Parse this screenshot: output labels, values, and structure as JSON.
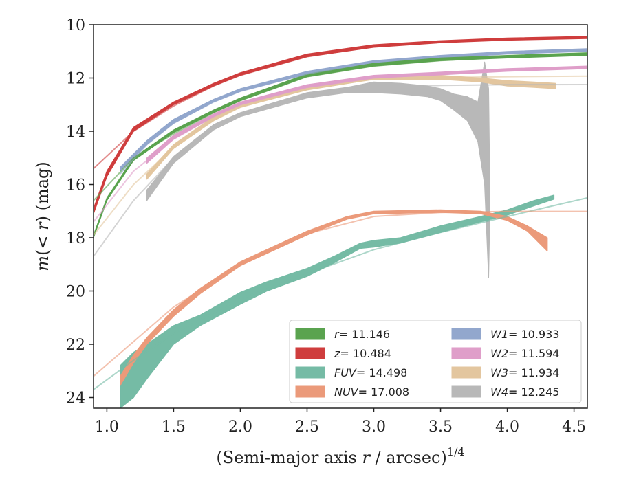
{
  "chart_data": {
    "type": "line",
    "xlabel": "(Semi-major axis r / arcsec)",
    "xlabel_parts": {
      "prefix": "(Semi-major axis ",
      "var": "r",
      "suffix": " / arcsec)",
      "exponent": "1/4"
    },
    "ylabel_parts": {
      "m": "m",
      "open": "(",
      "lt": "< ",
      "r": "r",
      "close": ")",
      "unit": " (mag)"
    },
    "xlim": [
      0.9,
      4.6
    ],
    "ylim": [
      24.4,
      10.0
    ],
    "y_inverted": true,
    "xticks": [
      "1.0",
      "1.5",
      "2.0",
      "2.5",
      "3.0",
      "3.5",
      "4.0",
      "4.5"
    ],
    "yticks": [
      "10",
      "12",
      "14",
      "16",
      "18",
      "20",
      "22",
      "24"
    ],
    "grid": false,
    "legend_placement": "lower-right",
    "series": [
      {
        "key": "r",
        "label_var": "r",
        "label_val": "= 11.146",
        "color": "#5aa34f",
        "fit": [
          [
            0.9,
            16.6
          ],
          [
            1.2,
            15.0
          ],
          [
            1.5,
            14.1
          ],
          [
            1.8,
            13.3
          ],
          [
            2.0,
            12.85
          ],
          [
            2.5,
            11.95
          ],
          [
            3.0,
            11.55
          ],
          [
            3.5,
            11.35
          ],
          [
            4.0,
            11.22
          ],
          [
            4.6,
            11.12
          ]
        ],
        "band": [
          [
            0.9,
            18.0,
            17.9
          ],
          [
            1.0,
            16.6,
            16.5
          ],
          [
            1.2,
            15.1,
            15.0
          ],
          [
            1.5,
            14.05,
            13.95
          ],
          [
            1.8,
            13.3,
            13.2
          ],
          [
            2.0,
            12.85,
            12.75
          ],
          [
            2.5,
            11.95,
            11.85
          ],
          [
            3.0,
            11.55,
            11.45
          ],
          [
            3.5,
            11.35,
            11.25
          ],
          [
            4.0,
            11.25,
            11.15
          ],
          [
            4.6,
            11.15,
            11.05
          ]
        ]
      },
      {
        "key": "z",
        "label_var": "z",
        "label_val": "= 10.484",
        "color": "#cf3d3d",
        "fit": [
          [
            0.9,
            15.4
          ],
          [
            1.2,
            14.0
          ],
          [
            1.5,
            13.05
          ],
          [
            1.8,
            12.3
          ],
          [
            2.0,
            11.9
          ],
          [
            2.5,
            11.2
          ],
          [
            3.0,
            10.82
          ],
          [
            3.5,
            10.65
          ],
          [
            4.0,
            10.55
          ],
          [
            4.6,
            10.48
          ]
        ],
        "band": [
          [
            0.9,
            17.1,
            16.9
          ],
          [
            1.0,
            15.7,
            15.5
          ],
          [
            1.2,
            14.0,
            13.85
          ],
          [
            1.5,
            13.0,
            12.9
          ],
          [
            1.8,
            12.3,
            12.2
          ],
          [
            2.0,
            11.9,
            11.8
          ],
          [
            2.5,
            11.2,
            11.1
          ],
          [
            3.0,
            10.85,
            10.75
          ],
          [
            3.5,
            10.68,
            10.6
          ],
          [
            4.0,
            10.58,
            10.5
          ],
          [
            4.6,
            10.52,
            10.44
          ]
        ]
      },
      {
        "key": "W1",
        "label_var": "W1",
        "label_val": "= 10.933",
        "color": "#92a7cd",
        "fit": [
          [
            1.1,
            15.6
          ],
          [
            1.3,
            14.5
          ],
          [
            1.5,
            13.7
          ],
          [
            1.8,
            12.9
          ],
          [
            2.0,
            12.5
          ],
          [
            2.5,
            11.85
          ],
          [
            3.0,
            11.4
          ],
          [
            3.5,
            11.2
          ],
          [
            4.0,
            11.05
          ],
          [
            4.6,
            10.95
          ]
        ],
        "band": [
          [
            1.1,
            15.5,
            15.35
          ],
          [
            1.3,
            14.5,
            14.35
          ],
          [
            1.5,
            13.7,
            13.55
          ],
          [
            1.8,
            12.9,
            12.8
          ],
          [
            2.0,
            12.5,
            12.4
          ],
          [
            2.5,
            11.85,
            11.75
          ],
          [
            3.0,
            11.45,
            11.35
          ],
          [
            3.5,
            11.25,
            11.15
          ],
          [
            4.0,
            11.1,
            11.0
          ],
          [
            4.6,
            11.0,
            10.9
          ]
        ]
      },
      {
        "key": "W2",
        "label_var": "W2",
        "label_val": "= 11.594",
        "color": "#df9ec9",
        "fit": [
          [
            0.9,
            17.4
          ],
          [
            1.2,
            15.5
          ],
          [
            1.5,
            14.3
          ],
          [
            1.8,
            13.45
          ],
          [
            2.0,
            13.0
          ],
          [
            2.5,
            12.35
          ],
          [
            3.0,
            12.0
          ],
          [
            3.5,
            11.85
          ],
          [
            4.0,
            11.72
          ],
          [
            4.6,
            11.6
          ]
        ],
        "band": [
          [
            1.3,
            15.2,
            15.0
          ],
          [
            1.5,
            14.3,
            14.15
          ],
          [
            1.8,
            13.45,
            13.35
          ],
          [
            2.0,
            13.0,
            12.9
          ],
          [
            2.5,
            12.35,
            12.25
          ],
          [
            3.0,
            12.0,
            11.9
          ],
          [
            3.5,
            11.88,
            11.78
          ],
          [
            4.0,
            11.75,
            11.65
          ],
          [
            4.6,
            11.65,
            11.55
          ]
        ]
      },
      {
        "key": "W3",
        "label_var": "W3",
        "label_val": "= 11.934",
        "color": "#e3c69f",
        "fit": [
          [
            0.9,
            17.9
          ],
          [
            1.2,
            16.0
          ],
          [
            1.5,
            14.6
          ],
          [
            1.8,
            13.6
          ],
          [
            2.0,
            13.1
          ],
          [
            2.5,
            12.4
          ],
          [
            3.0,
            12.05
          ],
          [
            3.5,
            11.98
          ],
          [
            4.0,
            11.95
          ],
          [
            4.6,
            11.93
          ]
        ],
        "band": [
          [
            1.3,
            15.8,
            15.6
          ],
          [
            1.5,
            14.65,
            14.5
          ],
          [
            1.8,
            13.6,
            13.45
          ],
          [
            2.0,
            13.1,
            13.0
          ],
          [
            2.5,
            12.45,
            12.3
          ],
          [
            3.0,
            12.05,
            11.95
          ],
          [
            3.5,
            12.05,
            11.9
          ],
          [
            3.8,
            12.15,
            12.0
          ],
          [
            4.0,
            12.3,
            12.1
          ],
          [
            4.2,
            12.35,
            12.15
          ],
          [
            4.36,
            12.4,
            12.2
          ]
        ]
      },
      {
        "key": "W4",
        "label_var": "W4",
        "label_val": "= 12.245",
        "color": "#b8b8b8",
        "fit": [
          [
            0.9,
            18.7
          ],
          [
            1.2,
            16.6
          ],
          [
            1.5,
            15.0
          ],
          [
            1.8,
            13.9
          ],
          [
            2.0,
            13.4
          ],
          [
            2.5,
            12.7
          ],
          [
            3.0,
            12.35
          ],
          [
            3.5,
            12.28
          ],
          [
            4.0,
            12.25
          ],
          [
            4.6,
            12.245
          ]
        ],
        "band": [
          [
            1.3,
            16.6,
            16.2
          ],
          [
            1.5,
            15.2,
            14.95
          ],
          [
            1.8,
            13.95,
            13.75
          ],
          [
            2.0,
            13.45,
            13.3
          ],
          [
            2.5,
            12.75,
            12.55
          ],
          [
            2.8,
            12.55,
            12.35
          ],
          [
            3.0,
            12.55,
            12.15
          ],
          [
            3.2,
            12.6,
            12.2
          ],
          [
            3.4,
            12.7,
            12.3
          ],
          [
            3.5,
            12.85,
            12.4
          ],
          [
            3.6,
            13.2,
            12.6
          ],
          [
            3.7,
            13.6,
            12.7
          ],
          [
            3.78,
            14.4,
            12.9
          ],
          [
            3.83,
            16.0,
            11.4
          ],
          [
            3.86,
            19.5,
            12.4
          ],
          [
            3.87,
            17.0,
            16.4
          ]
        ]
      },
      {
        "key": "FUV",
        "label_var": "FUV",
        "label_val": "= 14.498",
        "color": "#75bba5",
        "fit": [
          [
            0.9,
            23.7
          ],
          [
            1.2,
            22.6
          ],
          [
            1.5,
            21.6
          ],
          [
            2.0,
            20.3
          ],
          [
            2.5,
            19.35
          ],
          [
            3.0,
            18.45
          ],
          [
            3.5,
            17.8
          ],
          [
            4.0,
            17.2
          ],
          [
            4.6,
            16.5
          ]
        ],
        "band": [
          [
            1.1,
            24.4,
            22.8
          ],
          [
            1.2,
            24.0,
            22.3
          ],
          [
            1.3,
            23.3,
            22.0
          ],
          [
            1.5,
            22.0,
            21.3
          ],
          [
            1.7,
            21.3,
            20.9
          ],
          [
            2.0,
            20.5,
            20.05
          ],
          [
            2.2,
            20.0,
            19.65
          ],
          [
            2.5,
            19.45,
            19.15
          ],
          [
            2.7,
            18.95,
            18.7
          ],
          [
            2.9,
            18.4,
            18.2
          ],
          [
            3.0,
            18.35,
            18.1
          ],
          [
            3.2,
            18.2,
            18.0
          ],
          [
            3.5,
            17.8,
            17.55
          ],
          [
            3.8,
            17.4,
            17.2
          ],
          [
            4.0,
            17.15,
            16.95
          ],
          [
            4.2,
            16.8,
            16.6
          ],
          [
            4.35,
            16.55,
            16.4
          ]
        ]
      },
      {
        "key": "NUV",
        "label_var": "NUV",
        "label_val": "= 17.008",
        "color": "#eb9a7a",
        "fit": [
          [
            0.9,
            23.2
          ],
          [
            1.2,
            21.9
          ],
          [
            1.5,
            20.6
          ],
          [
            2.0,
            19.0
          ],
          [
            2.5,
            17.85
          ],
          [
            3.0,
            17.2
          ],
          [
            3.5,
            17.05
          ],
          [
            4.0,
            17.01
          ],
          [
            4.6,
            17.008
          ]
        ],
        "band": [
          [
            1.1,
            23.55,
            23.2
          ],
          [
            1.2,
            22.7,
            22.4
          ],
          [
            1.3,
            22.0,
            21.75
          ],
          [
            1.5,
            20.95,
            20.7
          ],
          [
            1.7,
            20.1,
            19.9
          ],
          [
            2.0,
            19.05,
            18.9
          ],
          [
            2.5,
            17.9,
            17.75
          ],
          [
            2.8,
            17.3,
            17.2
          ],
          [
            3.0,
            17.1,
            17.0
          ],
          [
            3.5,
            17.05,
            16.95
          ],
          [
            3.8,
            17.1,
            17.0
          ],
          [
            4.0,
            17.35,
            17.2
          ],
          [
            4.15,
            17.75,
            17.55
          ],
          [
            4.3,
            18.5,
            18.0
          ]
        ]
      }
    ]
  }
}
